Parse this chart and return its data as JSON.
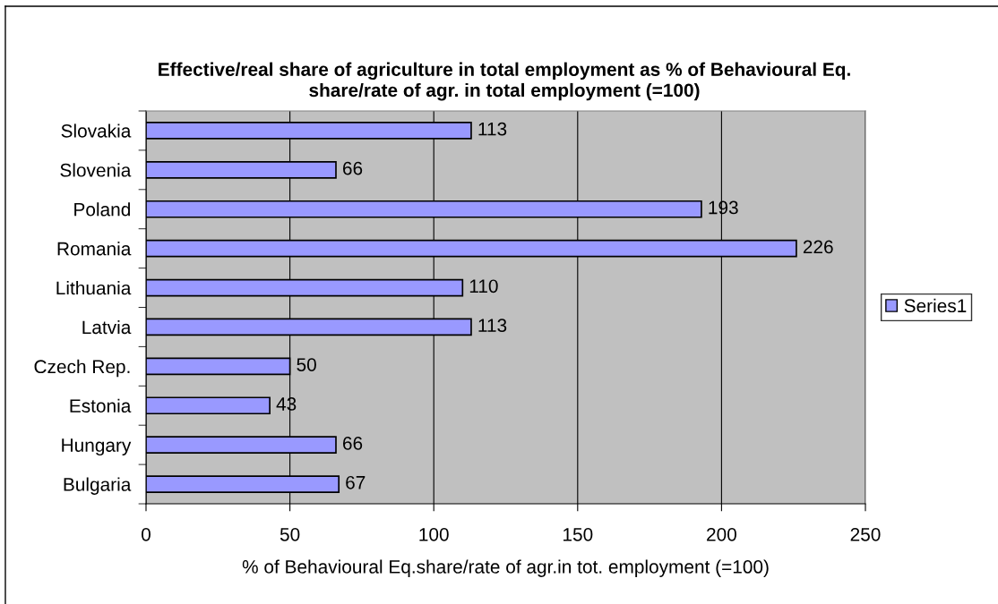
{
  "chart_data": {
    "type": "bar",
    "orientation": "horizontal",
    "title": "Effective/real share of agriculture in total employment as % of Behavioural Eq. share/rate of agr. in total employment (=100)",
    "xlabel": "% of Behavioural Eq.share/rate of agr.in tot. employment (=100)",
    "categories": [
      "Slovakia",
      "Slovenia",
      "Poland",
      "Romania",
      "Lithuania",
      "Latvia",
      "Czech Rep.",
      "Estonia",
      "Hungary",
      "Bulgaria"
    ],
    "series": [
      {
        "name": "Series1",
        "color": "#9999ff",
        "values": [
          113,
          66,
          193,
          226,
          110,
          113,
          50,
          43,
          66,
          67
        ]
      }
    ],
    "xlim": [
      0,
      250
    ],
    "xticks": [
      0,
      50,
      100,
      150,
      200,
      250
    ],
    "grid": "x",
    "legend": "right",
    "data_labels": true
  }
}
